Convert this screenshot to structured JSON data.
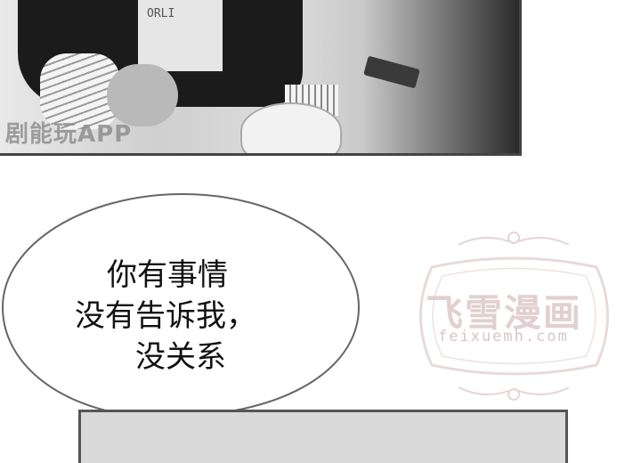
{
  "top_panel": {
    "shirt_text": "ORLI",
    "watermark": "剧能玩APP"
  },
  "speech_bubble": {
    "lines": [
      "你有事情",
      "没有告诉我，",
      "没关系"
    ]
  },
  "site_watermark": {
    "name": "飞雪漫画",
    "url": "feixuemh.com"
  }
}
